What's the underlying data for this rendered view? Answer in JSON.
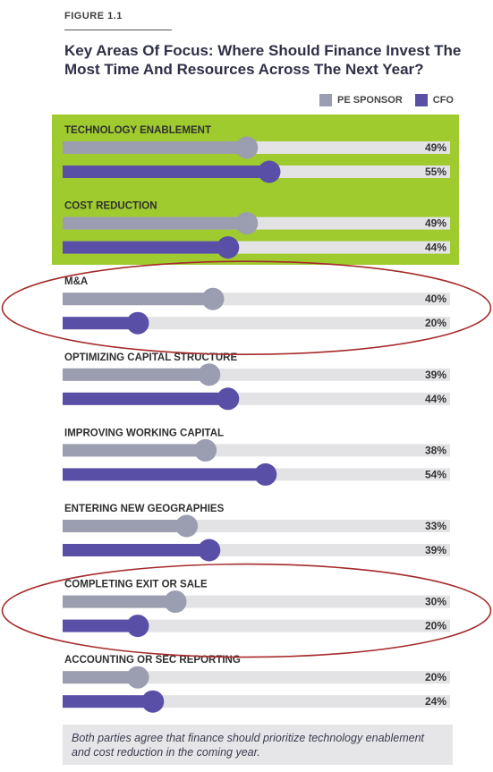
{
  "figure_label": "FIGURE 1.1",
  "note": "Both parties agree that finance should prioritize technology enablement and cost reduction in the coming year.",
  "colors": {
    "pe_sponsor": "#9b9db0",
    "cfo": "#5a4fa6",
    "track": "#e3e3e6",
    "highlight": "#9fcb2e",
    "circle": "#a52a2a"
  },
  "chart_data": {
    "type": "bar",
    "orientation": "horizontal",
    "title": "Key Areas Of Focus: Where Should Finance Invest The Most Time And Resources Across The Next Year?",
    "value_max": 100,
    "legend_position": "top-right",
    "highlighted_categories": [
      "TECHNOLOGY ENABLEMENT",
      "COST REDUCTION"
    ],
    "circled_categories": [
      "M&A",
      "COMPLETING EXIT OR SALE"
    ],
    "categories": [
      "TECHNOLOGY ENABLEMENT",
      "COST REDUCTION",
      "M&A",
      "OPTIMIZING CAPITAL STRUCTURE",
      "IMPROVING WORKING CAPITAL",
      "ENTERING NEW GEOGRAPHIES",
      "COMPLETING EXIT OR SALE",
      "ACCOUNTING OR SEC REPORTING"
    ],
    "series": [
      {
        "name": "PE SPONSOR",
        "values": [
          49,
          49,
          40,
          39,
          38,
          33,
          30,
          20
        ]
      },
      {
        "name": "CFO",
        "values": [
          55,
          44,
          20,
          44,
          54,
          39,
          20,
          24
        ]
      }
    ],
    "value_labels": {
      "PE SPONSOR": [
        "49%",
        "49%",
        "40%",
        "39%",
        "38%",
        "33%",
        "30%",
        "20%"
      ],
      "CFO": [
        "55%",
        "44%",
        "20%",
        "44%",
        "54%",
        "39%",
        "20%",
        "24%"
      ]
    }
  }
}
